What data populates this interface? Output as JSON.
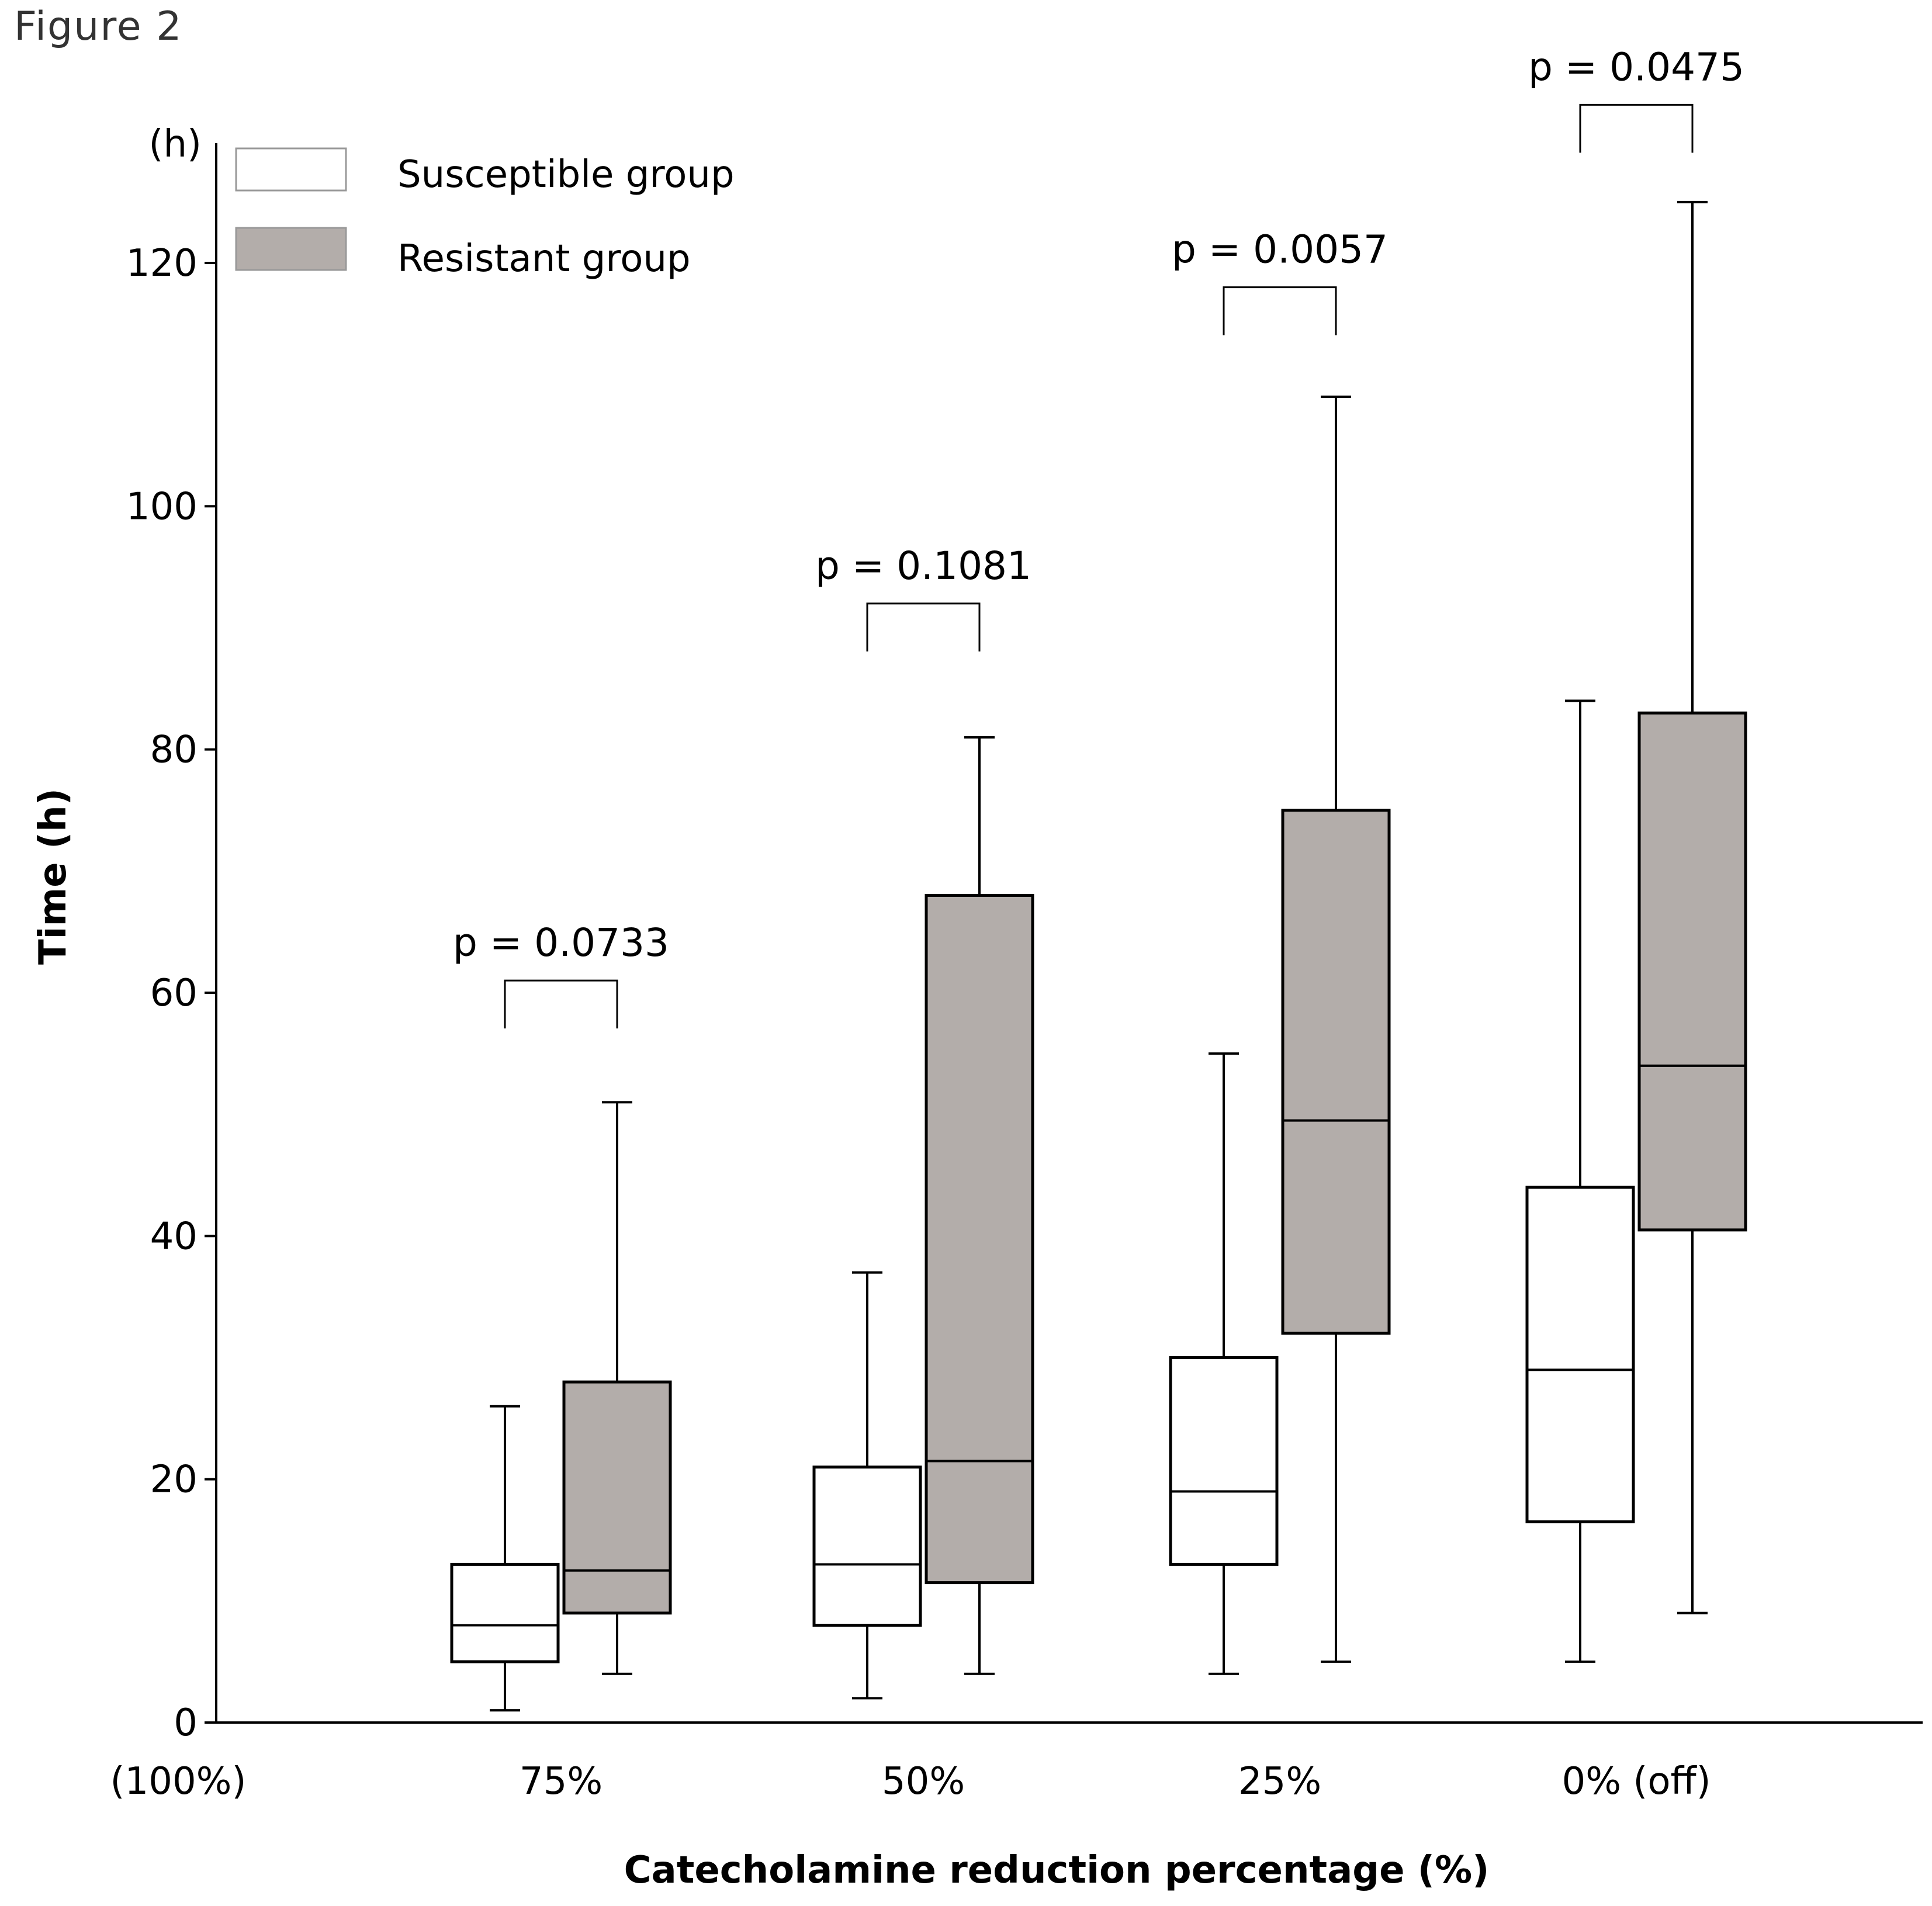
{
  "figure_label": "Figure 2",
  "colors": {
    "susceptible_fill": "#ffffff",
    "resistant_fill": "#b3adaa",
    "stroke": "#000000"
  },
  "chart_data": {
    "type": "boxplot",
    "xlabel": "Catecholamine reduction percentage (%)",
    "ylabel": "Time (h)",
    "y_unit_label": "(h)",
    "ylim": [
      0,
      130
    ],
    "yticks": [
      0,
      20,
      40,
      60,
      80,
      100,
      120
    ],
    "x_origin_label": "(100%)",
    "categories": [
      "75%",
      "50%",
      "25%",
      "0% (off)"
    ],
    "legend_position": "top-left",
    "grid": false,
    "series": [
      {
        "name": "Susceptible group",
        "boxes": [
          {
            "min": 1,
            "q1": 5,
            "median": 8,
            "q3": 13,
            "max": 26
          },
          {
            "min": 2,
            "q1": 8,
            "median": 13,
            "q3": 21,
            "max": 37
          },
          {
            "min": 4,
            "q1": 13,
            "median": 19,
            "q3": 30,
            "max": 55
          },
          {
            "min": 5,
            "q1": 16.5,
            "median": 29,
            "q3": 44,
            "max": 84
          }
        ]
      },
      {
        "name": "Resistant group",
        "boxes": [
          {
            "min": 4,
            "q1": 9,
            "median": 12.5,
            "q3": 28,
            "max": 51
          },
          {
            "min": 4,
            "q1": 11.5,
            "median": 21.5,
            "q3": 68,
            "max": 81
          },
          {
            "min": 5,
            "q1": 32,
            "median": 49.5,
            "q3": 75,
            "max": 109
          },
          {
            "min": 9,
            "q1": 40.5,
            "median": 54,
            "q3": 83,
            "max": 125
          }
        ]
      }
    ],
    "annotations": [
      {
        "category": "75%",
        "text": "p = 0.0733",
        "bracket_y": 61
      },
      {
        "category": "50%",
        "text": "p = 0.1081",
        "bracket_y": 92
      },
      {
        "category": "25%",
        "text": "p = 0.0057",
        "bracket_y": 118
      },
      {
        "category": "0% (off)",
        "text": "p = 0.0475",
        "bracket_y": 133
      }
    ]
  }
}
